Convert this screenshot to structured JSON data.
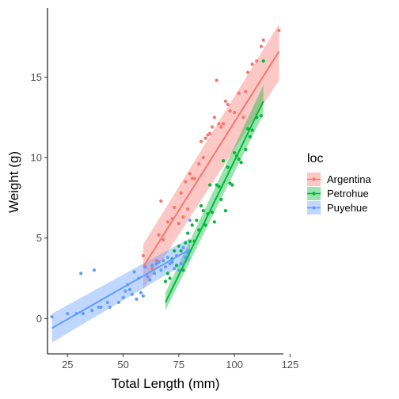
{
  "chart_data": {
    "type": "scatter",
    "xlabel": "Total Length (mm)",
    "ylabel": "Weight (g)",
    "xlim": [
      16,
      122
    ],
    "ylim": [
      -2.2,
      19.3
    ],
    "x_ticks": [
      25,
      50,
      75,
      100,
      125
    ],
    "y_ticks": [
      0,
      5,
      10,
      15
    ],
    "grid": false,
    "legend_title": "loc",
    "legend_position": "right",
    "series": [
      {
        "name": "Argentina",
        "color": "#F8766D",
        "points": [
          [
            59,
            3.9
          ],
          [
            61,
            2.6
          ],
          [
            63,
            3.1
          ],
          [
            65,
            3.6
          ],
          [
            66,
            5.2
          ],
          [
            67,
            7.3
          ],
          [
            68,
            4.9
          ],
          [
            70,
            6.0
          ],
          [
            72,
            6.2
          ],
          [
            73,
            6.9
          ],
          [
            75,
            5.9
          ],
          [
            76,
            7.8
          ],
          [
            77,
            6.3
          ],
          [
            78,
            8.5
          ],
          [
            79,
            6.8
          ],
          [
            80,
            9.0
          ],
          [
            81,
            8.7
          ],
          [
            82,
            8.7
          ],
          [
            84,
            9.6
          ],
          [
            85,
            11.0
          ],
          [
            86,
            10.0
          ],
          [
            87,
            11.2
          ],
          [
            88,
            11.4
          ],
          [
            89,
            11.5
          ],
          [
            90,
            11.9
          ],
          [
            91,
            12.5
          ],
          [
            92,
            14.8
          ],
          [
            93,
            12.1
          ],
          [
            94,
            11.9
          ],
          [
            95,
            12.1
          ],
          [
            96,
            13.5
          ],
          [
            97,
            13.3
          ],
          [
            98,
            12.9
          ],
          [
            100,
            12.8
          ],
          [
            102,
            14.0
          ],
          [
            104,
            12.5
          ],
          [
            105,
            14.1
          ],
          [
            106,
            15.3
          ],
          [
            108,
            15.8
          ],
          [
            110,
            16.0
          ],
          [
            112,
            16.9
          ],
          [
            113,
            17.3
          ],
          [
            120,
            17.9
          ]
        ],
        "fit": {
          "x": [
            59,
            120
          ],
          "y": [
            3.2,
            16.6
          ],
          "ci_low": [
            1.8,
            14.8
          ],
          "ci_high": [
            4.6,
            18.3
          ]
        }
      },
      {
        "name": "Petrohue",
        "color": "#00BA38",
        "points": [
          [
            69,
            2.3
          ],
          [
            70,
            2.8
          ],
          [
            71,
            2.5
          ],
          [
            72,
            3.7
          ],
          [
            73,
            4.2
          ],
          [
            74,
            3.3
          ],
          [
            75,
            4.5
          ],
          [
            76,
            4.2
          ],
          [
            77,
            3.0
          ],
          [
            78,
            4.7
          ],
          [
            79,
            5.3
          ],
          [
            80,
            4.8
          ],
          [
            81,
            5.8
          ],
          [
            82,
            4.8
          ],
          [
            83,
            6.1
          ],
          [
            84,
            5.5
          ],
          [
            85,
            7.0
          ],
          [
            86,
            6.7
          ],
          [
            87,
            5.8
          ],
          [
            88,
            6.5
          ],
          [
            89,
            8.3
          ],
          [
            90,
            6.6
          ],
          [
            91,
            6.0
          ],
          [
            92,
            8.3
          ],
          [
            93,
            8.2
          ],
          [
            94,
            7.4
          ],
          [
            95,
            9.8
          ],
          [
            96,
            6.7
          ],
          [
            97,
            9.4
          ],
          [
            98,
            8.4
          ],
          [
            99,
            8.3
          ],
          [
            100,
            10.3
          ],
          [
            101,
            10.1
          ],
          [
            102,
            9.9
          ],
          [
            103,
            9.7
          ],
          [
            105,
            10.5
          ],
          [
            106,
            11.8
          ],
          [
            107,
            11.3
          ],
          [
            108,
            11.7
          ],
          [
            110,
            12.5
          ],
          [
            112,
            12.6
          ],
          [
            113,
            16.0
          ]
        ],
        "fit": {
          "x": [
            69,
            113
          ],
          "y": [
            1.0,
            13.5
          ],
          "ci_low": [
            0.5,
            12.7
          ],
          "ci_high": [
            1.6,
            14.5
          ]
        }
      },
      {
        "name": "Puyehue",
        "color": "#619CFF",
        "points": [
          [
            18,
            0.1
          ],
          [
            25,
            0.3
          ],
          [
            29,
            0.3
          ],
          [
            31,
            2.8
          ],
          [
            32,
            0.3
          ],
          [
            36,
            0.5
          ],
          [
            37,
            3.0
          ],
          [
            39,
            0.7
          ],
          [
            40,
            0.7
          ],
          [
            43,
            1.0
          ],
          [
            44,
            0.7
          ],
          [
            48,
            1.0
          ],
          [
            50,
            1.3
          ],
          [
            51,
            1.7
          ],
          [
            52,
            2.1
          ],
          [
            53,
            1.8
          ],
          [
            54,
            1.5
          ],
          [
            55,
            2.9
          ],
          [
            56,
            1.2
          ],
          [
            57,
            2.5
          ],
          [
            58,
            1.6
          ],
          [
            59,
            1.4
          ],
          [
            60,
            3.2
          ],
          [
            61,
            2.6
          ],
          [
            62,
            2.4
          ],
          [
            63,
            3.3
          ],
          [
            64,
            2.8
          ],
          [
            65,
            3.4
          ],
          [
            66,
            3.5
          ],
          [
            67,
            3.0
          ],
          [
            68,
            3.6
          ],
          [
            69,
            3.2
          ],
          [
            70,
            3.8
          ],
          [
            71,
            3.4
          ],
          [
            72,
            3.5
          ],
          [
            73,
            3.1
          ],
          [
            74,
            3.9
          ],
          [
            75,
            3.0
          ],
          [
            76,
            3.4
          ],
          [
            77,
            4.4
          ],
          [
            78,
            3.8
          ],
          [
            79,
            4.1
          ],
          [
            80,
            6.1
          ]
        ],
        "fit": {
          "x": [
            18,
            80
          ],
          "y": [
            -0.6,
            4.3
          ],
          "ci_low": [
            -1.5,
            3.6
          ],
          "ci_high": [
            0.3,
            5.0
          ]
        }
      }
    ]
  }
}
